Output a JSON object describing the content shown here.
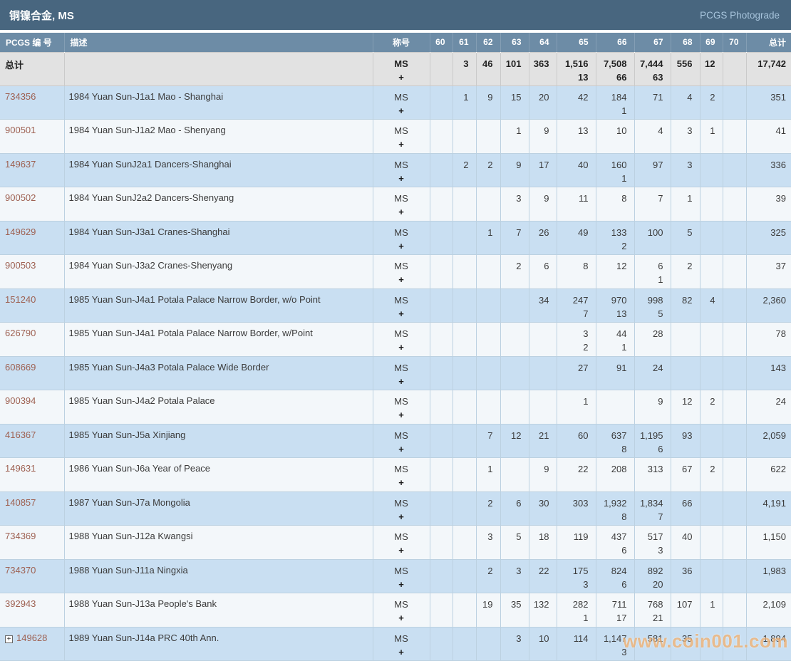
{
  "title_bar": {
    "title": "铜镍合金, MS",
    "photograde": "PCGS Photograde"
  },
  "columns": [
    "PCGS 编 号",
    "描述",
    "称号",
    "60",
    "61",
    "62",
    "63",
    "64",
    "65",
    "66",
    "67",
    "68",
    "69",
    "70",
    "总计"
  ],
  "column_slugs": [
    "pcgs-number",
    "description",
    "designation",
    "60",
    "61",
    "62",
    "63",
    "64",
    "65",
    "66",
    "67",
    "68",
    "69",
    "70",
    "total"
  ],
  "designation": [
    "MS",
    "+"
  ],
  "total_row": {
    "label": "总计",
    "grades": [
      [
        "",
        ""
      ],
      [
        "3",
        ""
      ],
      [
        "46",
        ""
      ],
      [
        "101",
        ""
      ],
      [
        "363",
        ""
      ],
      [
        "1,516",
        "13"
      ],
      [
        "7,508",
        "66"
      ],
      [
        "7,444",
        "63"
      ],
      [
        "556",
        ""
      ],
      [
        "12",
        ""
      ],
      [
        "",
        ""
      ]
    ],
    "total": "17,742"
  },
  "rows": [
    {
      "pcgs": "734356",
      "expand": false,
      "desc": "1984 Yuan Sun-J1a1 Mao - Shanghai",
      "grades": [
        [
          "",
          ""
        ],
        [
          "1",
          ""
        ],
        [
          "9",
          ""
        ],
        [
          "15",
          ""
        ],
        [
          "20",
          ""
        ],
        [
          "42",
          ""
        ],
        [
          "184",
          "1"
        ],
        [
          "71",
          ""
        ],
        [
          "4",
          ""
        ],
        [
          "2",
          ""
        ],
        [
          "",
          ""
        ]
      ],
      "total": "351"
    },
    {
      "pcgs": "900501",
      "expand": false,
      "desc": "1984 Yuan Sun-J1a2 Mao - Shenyang",
      "grades": [
        [
          "",
          ""
        ],
        [
          "",
          ""
        ],
        [
          "",
          ""
        ],
        [
          "1",
          ""
        ],
        [
          "9",
          ""
        ],
        [
          "13",
          ""
        ],
        [
          "10",
          ""
        ],
        [
          "4",
          ""
        ],
        [
          "3",
          ""
        ],
        [
          "1",
          ""
        ],
        [
          "",
          ""
        ]
      ],
      "total": "41"
    },
    {
      "pcgs": "149637",
      "expand": false,
      "desc": "1984 Yuan SunJ2a1 Dancers-Shanghai",
      "grades": [
        [
          "",
          ""
        ],
        [
          "2",
          ""
        ],
        [
          "2",
          ""
        ],
        [
          "9",
          ""
        ],
        [
          "17",
          ""
        ],
        [
          "40",
          ""
        ],
        [
          "160",
          "1"
        ],
        [
          "97",
          ""
        ],
        [
          "3",
          ""
        ],
        [
          "",
          ""
        ],
        [
          "",
          ""
        ]
      ],
      "total": "336"
    },
    {
      "pcgs": "900502",
      "expand": false,
      "desc": "1984 Yuan SunJ2a2 Dancers-Shenyang",
      "grades": [
        [
          "",
          ""
        ],
        [
          "",
          ""
        ],
        [
          "",
          ""
        ],
        [
          "3",
          ""
        ],
        [
          "9",
          ""
        ],
        [
          "11",
          ""
        ],
        [
          "8",
          ""
        ],
        [
          "7",
          ""
        ],
        [
          "1",
          ""
        ],
        [
          "",
          ""
        ],
        [
          "",
          ""
        ]
      ],
      "total": "39"
    },
    {
      "pcgs": "149629",
      "expand": false,
      "desc": "1984 Yuan Sun-J3a1 Cranes-Shanghai",
      "grades": [
        [
          "",
          ""
        ],
        [
          "",
          ""
        ],
        [
          "1",
          ""
        ],
        [
          "7",
          ""
        ],
        [
          "26",
          ""
        ],
        [
          "49",
          ""
        ],
        [
          "133",
          "2"
        ],
        [
          "100",
          ""
        ],
        [
          "5",
          ""
        ],
        [
          "",
          ""
        ],
        [
          "",
          ""
        ]
      ],
      "total": "325"
    },
    {
      "pcgs": "900503",
      "expand": false,
      "desc": "1984 Yuan Sun-J3a2 Cranes-Shenyang",
      "grades": [
        [
          "",
          ""
        ],
        [
          "",
          ""
        ],
        [
          "",
          ""
        ],
        [
          "2",
          ""
        ],
        [
          "6",
          ""
        ],
        [
          "8",
          ""
        ],
        [
          "12",
          ""
        ],
        [
          "6",
          "1"
        ],
        [
          "2",
          ""
        ],
        [
          "",
          ""
        ],
        [
          "",
          ""
        ]
      ],
      "total": "37"
    },
    {
      "pcgs": "151240",
      "expand": false,
      "desc": "1985 Yuan Sun-J4a1 Potala Palace Narrow Border, w/o Point",
      "grades": [
        [
          "",
          ""
        ],
        [
          "",
          ""
        ],
        [
          "",
          ""
        ],
        [
          "",
          ""
        ],
        [
          "34",
          ""
        ],
        [
          "247",
          "7"
        ],
        [
          "970",
          "13"
        ],
        [
          "998",
          "5"
        ],
        [
          "82",
          ""
        ],
        [
          "4",
          ""
        ],
        [
          "",
          ""
        ]
      ],
      "total": "2,360"
    },
    {
      "pcgs": "626790",
      "expand": false,
      "desc": "1985 Yuan Sun-J4a1 Potala Palace Narrow Border, w/Point",
      "grades": [
        [
          "",
          ""
        ],
        [
          "",
          ""
        ],
        [
          "",
          ""
        ],
        [
          "",
          ""
        ],
        [
          "",
          ""
        ],
        [
          "3",
          "2"
        ],
        [
          "44",
          "1"
        ],
        [
          "28",
          ""
        ],
        [
          "",
          ""
        ],
        [
          "",
          ""
        ],
        [
          "",
          ""
        ]
      ],
      "total": "78"
    },
    {
      "pcgs": "608669",
      "expand": false,
      "desc": "1985 Yuan Sun-J4a3 Potala Palace Wide Border",
      "grades": [
        [
          "",
          ""
        ],
        [
          "",
          ""
        ],
        [
          "",
          ""
        ],
        [
          "",
          ""
        ],
        [
          "",
          ""
        ],
        [
          "27",
          ""
        ],
        [
          "91",
          ""
        ],
        [
          "24",
          ""
        ],
        [
          "",
          ""
        ],
        [
          "",
          ""
        ],
        [
          "",
          ""
        ]
      ],
      "total": "143"
    },
    {
      "pcgs": "900394",
      "expand": false,
      "desc": "1985 Yuan Sun-J4a2 Potala Palace",
      "grades": [
        [
          "",
          ""
        ],
        [
          "",
          ""
        ],
        [
          "",
          ""
        ],
        [
          "",
          ""
        ],
        [
          "",
          ""
        ],
        [
          "1",
          ""
        ],
        [
          "",
          ""
        ],
        [
          "9",
          ""
        ],
        [
          "12",
          ""
        ],
        [
          "2",
          ""
        ],
        [
          "",
          ""
        ]
      ],
      "total": "24"
    },
    {
      "pcgs": "416367",
      "expand": false,
      "desc": "1985 Yuan Sun-J5a Xinjiang",
      "grades": [
        [
          "",
          ""
        ],
        [
          "",
          ""
        ],
        [
          "7",
          ""
        ],
        [
          "12",
          ""
        ],
        [
          "21",
          ""
        ],
        [
          "60",
          ""
        ],
        [
          "637",
          "8"
        ],
        [
          "1,195",
          "6"
        ],
        [
          "93",
          ""
        ],
        [
          "",
          ""
        ],
        [
          "",
          ""
        ]
      ],
      "total": "2,059"
    },
    {
      "pcgs": "149631",
      "expand": false,
      "desc": "1986 Yuan Sun-J6a Year of Peace",
      "grades": [
        [
          "",
          ""
        ],
        [
          "",
          ""
        ],
        [
          "1",
          ""
        ],
        [
          "",
          ""
        ],
        [
          "9",
          ""
        ],
        [
          "22",
          ""
        ],
        [
          "208",
          ""
        ],
        [
          "313",
          ""
        ],
        [
          "67",
          ""
        ],
        [
          "2",
          ""
        ],
        [
          "",
          ""
        ]
      ],
      "total": "622"
    },
    {
      "pcgs": "140857",
      "expand": false,
      "desc": "1987 Yuan Sun-J7a Mongolia",
      "grades": [
        [
          "",
          ""
        ],
        [
          "",
          ""
        ],
        [
          "2",
          ""
        ],
        [
          "6",
          ""
        ],
        [
          "30",
          ""
        ],
        [
          "303",
          ""
        ],
        [
          "1,932",
          "8"
        ],
        [
          "1,834",
          "7"
        ],
        [
          "66",
          ""
        ],
        [
          "",
          ""
        ],
        [
          "",
          ""
        ]
      ],
      "total": "4,191"
    },
    {
      "pcgs": "734369",
      "expand": false,
      "desc": "1988 Yuan Sun-J12a Kwangsi",
      "grades": [
        [
          "",
          ""
        ],
        [
          "",
          ""
        ],
        [
          "3",
          ""
        ],
        [
          "5",
          ""
        ],
        [
          "18",
          ""
        ],
        [
          "119",
          ""
        ],
        [
          "437",
          "6"
        ],
        [
          "517",
          "3"
        ],
        [
          "40",
          ""
        ],
        [
          "",
          ""
        ],
        [
          "",
          ""
        ]
      ],
      "total": "1,150"
    },
    {
      "pcgs": "734370",
      "expand": false,
      "desc": "1988 Yuan Sun-J11a Ningxia",
      "grades": [
        [
          "",
          ""
        ],
        [
          "",
          ""
        ],
        [
          "2",
          ""
        ],
        [
          "3",
          ""
        ],
        [
          "22",
          ""
        ],
        [
          "175",
          "3"
        ],
        [
          "824",
          "6"
        ],
        [
          "892",
          "20"
        ],
        [
          "36",
          ""
        ],
        [
          "",
          ""
        ],
        [
          "",
          ""
        ]
      ],
      "total": "1,983"
    },
    {
      "pcgs": "392943",
      "expand": false,
      "desc": "1988 Yuan Sun-J13a People's Bank",
      "grades": [
        [
          "",
          ""
        ],
        [
          "",
          ""
        ],
        [
          "19",
          ""
        ],
        [
          "35",
          ""
        ],
        [
          "132",
          ""
        ],
        [
          "282",
          "1"
        ],
        [
          "711",
          "17"
        ],
        [
          "768",
          "21"
        ],
        [
          "107",
          ""
        ],
        [
          "1",
          ""
        ],
        [
          "",
          ""
        ]
      ],
      "total": "2,109"
    },
    {
      "pcgs": "149628",
      "expand": true,
      "desc": "1989 Yuan Sun-J14a PRC 40th Ann.",
      "grades": [
        [
          "",
          ""
        ],
        [
          "",
          ""
        ],
        [
          "",
          ""
        ],
        [
          "3",
          ""
        ],
        [
          "10",
          ""
        ],
        [
          "114",
          ""
        ],
        [
          "1,147",
          "3"
        ],
        [
          "581",
          ""
        ],
        [
          "35",
          ""
        ],
        [
          "",
          ""
        ],
        [
          "",
          ""
        ]
      ],
      "total": "1,894"
    }
  ],
  "watermark": "www.coin001.com",
  "colors": {
    "title_bar_bg": "#48667F",
    "header_row_bg": "#6D8CA6",
    "row_blue_bg": "#C9DFF2",
    "row_light_bg": "#F3F7FA",
    "total_row_bg": "#E2E2E2",
    "cell_border": "#BCD1E1",
    "pcgs_link": "#9E6152",
    "photograde_text": "#A7C4DC",
    "watermark_orange": "#E88C32"
  }
}
